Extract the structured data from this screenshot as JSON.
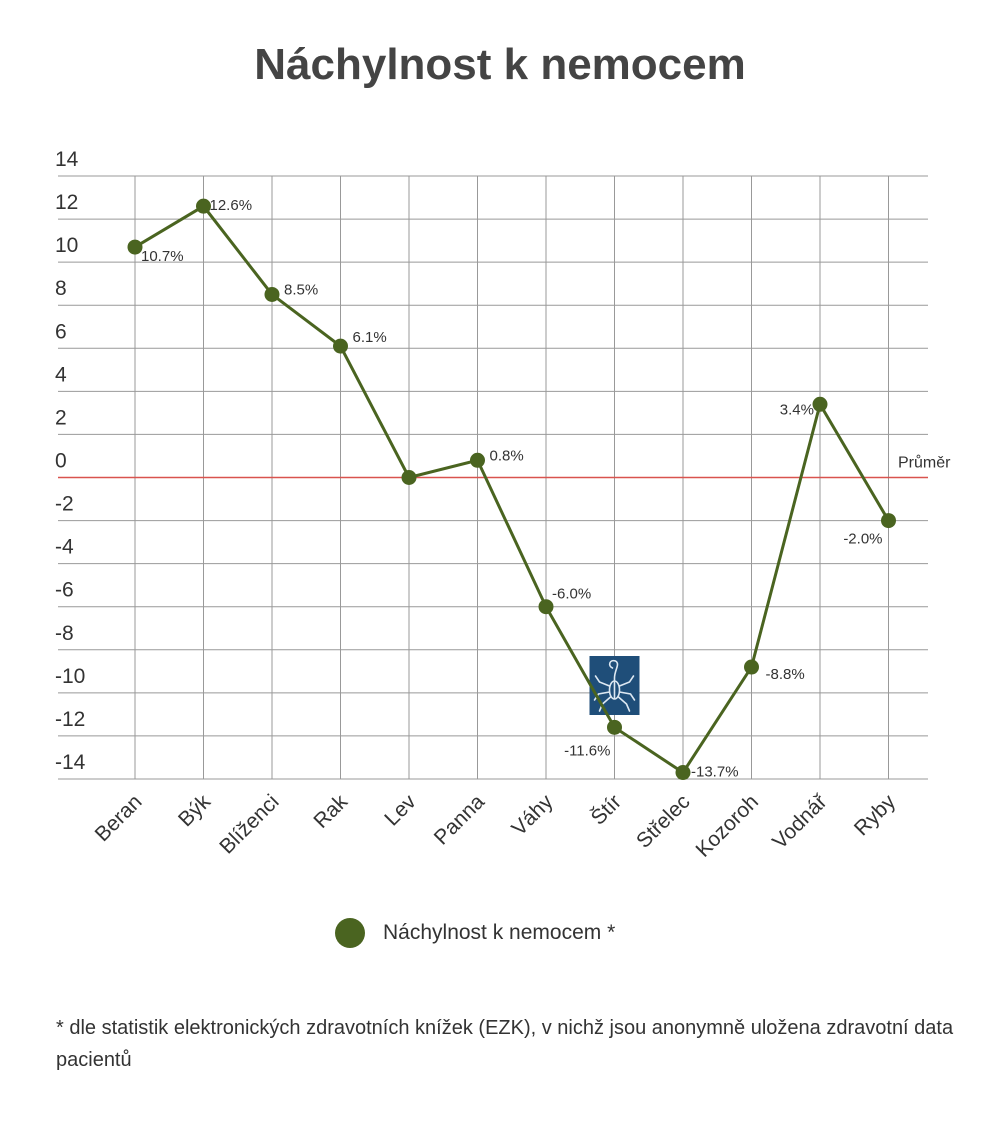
{
  "title": "Náchylnost k nemocem",
  "legend_label": "Náchylnost k nemocem *",
  "footnote": "* dle statistik elektronických zdravotních knížek (EZK), v nichž jsou anonymně uložena zdravotní data pacientů",
  "average_label": "Průměr",
  "colors": {
    "series": "#4a6420",
    "average_line": "#d9534f",
    "grid": "#999999",
    "icon_bg": "#1f4e79"
  },
  "chart_data": {
    "type": "line",
    "title": "Náchylnost k nemocem",
    "xlabel": "",
    "ylabel": "",
    "ylim": [
      -14,
      14
    ],
    "yticks": [
      14,
      12,
      10,
      8,
      6,
      4,
      2,
      0,
      -2,
      -4,
      -6,
      -8,
      -10,
      -12,
      -14
    ],
    "grid": true,
    "legend_position": "bottom",
    "categories": [
      "Beran",
      "Býk",
      "Blíženci",
      "Rak",
      "Lev",
      "Panna",
      "Váhy",
      "Štír",
      "Střelec",
      "Kozoroh",
      "Vodnář",
      "Ryby"
    ],
    "series": [
      {
        "name": "Náchylnost k nemocem *",
        "values": [
          10.7,
          12.6,
          8.5,
          6.1,
          0,
          0.8,
          -6.0,
          -11.6,
          -13.7,
          -8.8,
          3.4,
          -2.0
        ],
        "labels": [
          "10.7%",
          "12.6%",
          "8.5%",
          "6.1%",
          "",
          "0.8%",
          "-6.0%",
          "-11.6%",
          "-13.7%",
          "-8.8%",
          "3.4%",
          "-2.0%"
        ]
      }
    ],
    "reference_line": {
      "value": 0,
      "label": "Průměr"
    },
    "highlight": {
      "category": "Štír",
      "icon": "scorpion-icon"
    }
  }
}
